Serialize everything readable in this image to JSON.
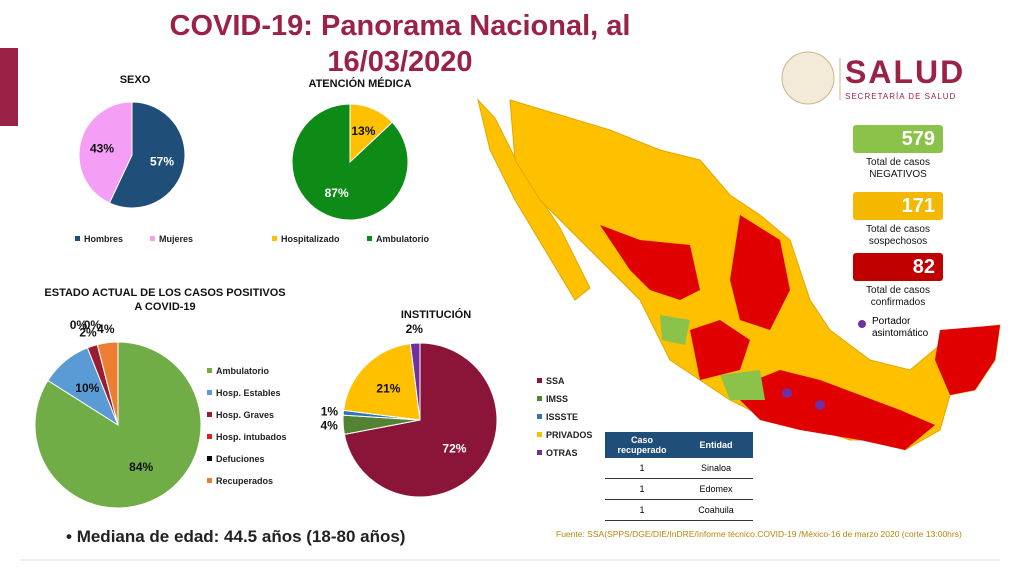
{
  "header": {
    "title": "COVID-19: Panorama Nacional, al 16/03/2020",
    "logo": "SALUD",
    "logo_subtitle": "SECRETARÍA DE SALUD"
  },
  "chart_data": [
    {
      "type": "pie",
      "title": "SEXO",
      "categories": [
        "Hombres",
        "Mujeres"
      ],
      "values": [
        57,
        43
      ],
      "value_labels": [
        "57%",
        "43%"
      ],
      "colors": [
        "#1f4e79",
        "#f59ef5"
      ]
    },
    {
      "type": "pie",
      "title": "ATENCIÓN MÉDICA",
      "categories": [
        "Hospitalizado",
        "Ambulatorio"
      ],
      "values": [
        13,
        87
      ],
      "value_labels": [
        "13%",
        "87%"
      ],
      "colors": [
        "#ffc000",
        "#0e8a16"
      ]
    },
    {
      "type": "pie",
      "title": "ESTADO ACTUAL DE LOS CASOS POSITIVOS A COVID-19",
      "categories": [
        "Ambulatorio",
        "Hosp. Estables",
        "Hosp. Graves",
        "Hosp. intubados",
        "Defuciones",
        "Recuperados"
      ],
      "values": [
        84,
        10,
        2,
        0,
        0,
        4
      ],
      "value_labels": [
        "84%",
        "10%",
        "2%",
        "0%",
        "0%",
        "4%"
      ],
      "colors": [
        "#70ad47",
        "#5b9bd5",
        "#9b1b30",
        "#e02020",
        "#000000",
        "#ed7d31"
      ]
    },
    {
      "type": "pie",
      "title": "INSTITUCIÓN",
      "categories": [
        "SSA",
        "IMSS",
        "ISSSTE",
        "PRIVADOS",
        "OTRAS"
      ],
      "values": [
        72,
        4,
        1,
        21,
        2
      ],
      "value_labels": [
        "72%",
        "4%",
        "1%",
        "21%",
        "2%"
      ],
      "colors": [
        "#8b1538",
        "#548235",
        "#2e75b6",
        "#ffc000",
        "#7030a0"
      ]
    }
  ],
  "stats": [
    {
      "value": 579,
      "label": "Total de casos NEGATIVOS",
      "color": "#8bc34a"
    },
    {
      "value": 171,
      "label": "Total de casos sospechosos",
      "color": "#f5b800"
    },
    {
      "value": 82,
      "label": "Total de casos confirmados",
      "color": "#c00000"
    }
  ],
  "map_legend": "Portador asintomático",
  "table": {
    "headers": [
      "Caso recuperado",
      "Entidad"
    ],
    "rows": [
      [
        1,
        "Sinaloa"
      ],
      [
        1,
        "Edomex"
      ],
      [
        1,
        "Coahuila"
      ]
    ]
  },
  "median": "Mediana de edad: 44.5 años (18-80 años)",
  "source": "Fuente: SSA(SPPS/DGE/DIE/InDRE/Informe técnico.COVID-19 /México-16 de marzo 2020 (corte 13:00hrs)"
}
